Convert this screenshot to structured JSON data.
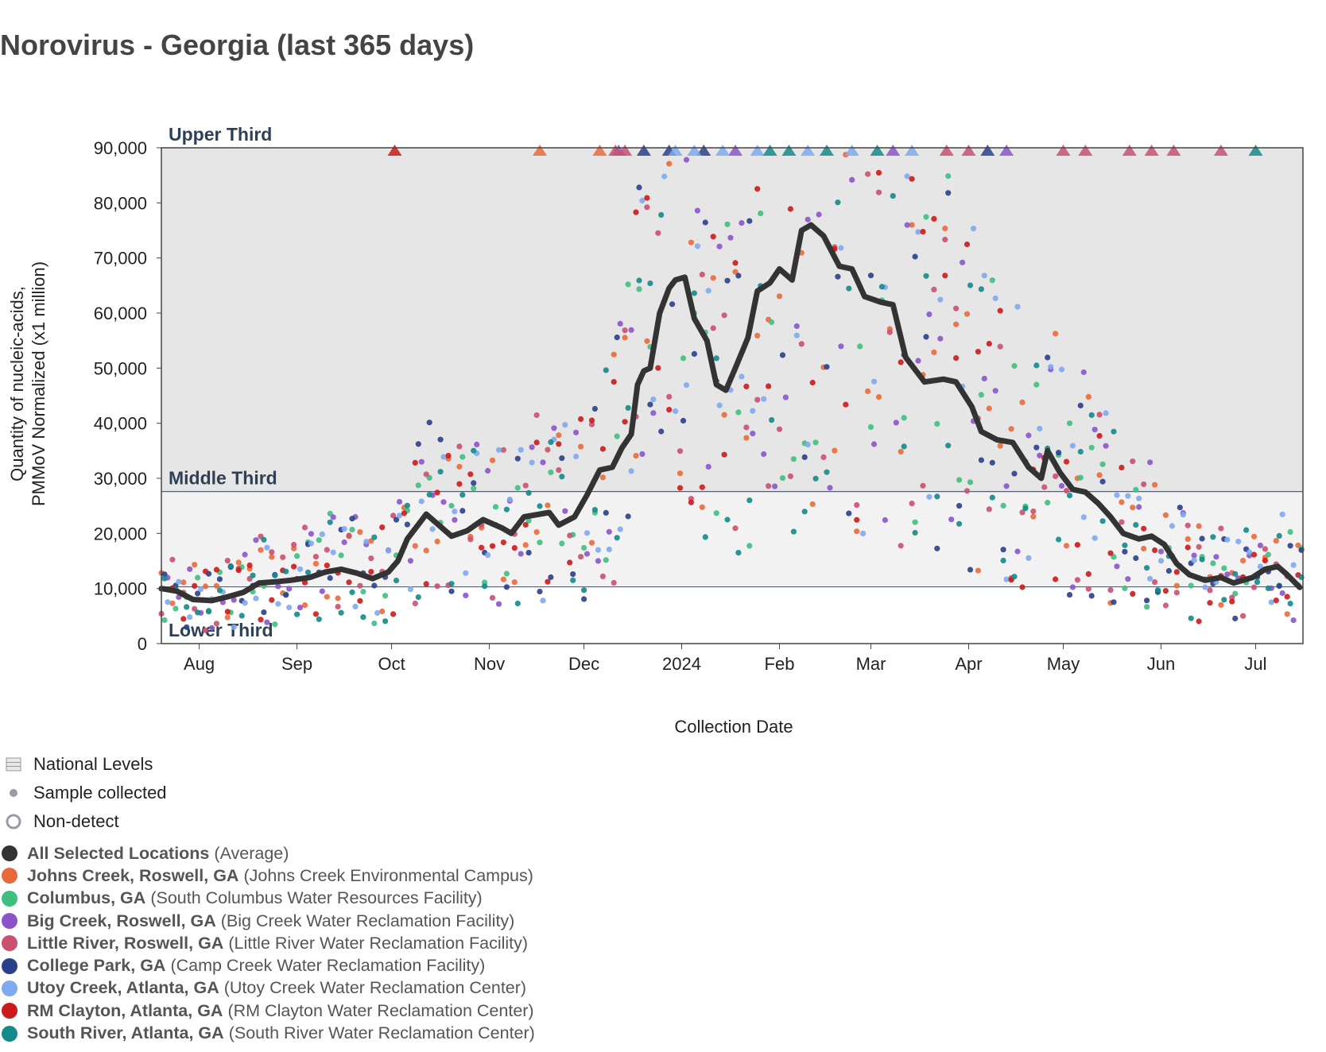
{
  "title": "Norovirus - Georgia (last 365 days)",
  "chart_data": {
    "type": "scatter",
    "title": "Norovirus - Georgia (last 365 days)",
    "xlabel": "Collection Date",
    "ylabel_lines": [
      "Quantity of nucleic-acids,",
      "PMMoV Normalized (x1 million)"
    ],
    "x_range": [
      "2023-07-20",
      "2024-07-16"
    ],
    "ylim": [
      0,
      90000
    ],
    "y_ticks": [
      0,
      10000,
      20000,
      30000,
      40000,
      50000,
      60000,
      70000,
      80000,
      90000
    ],
    "y_tick_labels": [
      "0",
      "10,000",
      "20,000",
      "30,000",
      "40,000",
      "50,000",
      "60,000",
      "70,000",
      "80,000",
      "90,000"
    ],
    "x_ticks": [
      {
        "date": "2023-08-01",
        "label": "Aug"
      },
      {
        "date": "2023-09-01",
        "label": "Sep"
      },
      {
        "date": "2023-10-01",
        "label": "Oct"
      },
      {
        "date": "2023-11-01",
        "label": "Nov"
      },
      {
        "date": "2023-12-01",
        "label": "Dec"
      },
      {
        "date": "2024-01-01",
        "label": "2024"
      },
      {
        "date": "2024-02-01",
        "label": "Feb"
      },
      {
        "date": "2024-03-01",
        "label": "Mar"
      },
      {
        "date": "2024-04-01",
        "label": "Apr"
      },
      {
        "date": "2024-05-01",
        "label": "May"
      },
      {
        "date": "2024-06-01",
        "label": "Jun"
      },
      {
        "date": "2024-07-01",
        "label": "Jul"
      }
    ],
    "bands": [
      {
        "label": "Lower Third",
        "from": 0,
        "to": 10300,
        "color": "#ffffff"
      },
      {
        "label": "Middle Third",
        "from": 10300,
        "to": 27600,
        "color": "#f2f2f2"
      },
      {
        "label": "Upper Third",
        "from": 27600,
        "to": 90000,
        "color": "#e6e6e6"
      }
    ],
    "average_series": {
      "name": "All Selected Locations",
      "color": "#333333",
      "points": [
        [
          "2023-07-20",
          10000
        ],
        [
          "2023-07-25",
          9500
        ],
        [
          "2023-07-30",
          8000
        ],
        [
          "2023-08-05",
          7800
        ],
        [
          "2023-08-10",
          8500
        ],
        [
          "2023-08-15",
          9300
        ],
        [
          "2023-08-20",
          11000
        ],
        [
          "2023-08-25",
          11200
        ],
        [
          "2023-08-30",
          11500
        ],
        [
          "2023-09-05",
          12000
        ],
        [
          "2023-09-10",
          13000
        ],
        [
          "2023-09-15",
          13500
        ],
        [
          "2023-09-20",
          12800
        ],
        [
          "2023-09-25",
          11800
        ],
        [
          "2023-09-30",
          13000
        ],
        [
          "2023-10-03",
          15000
        ],
        [
          "2023-10-06",
          19000
        ],
        [
          "2023-10-10",
          22000
        ],
        [
          "2023-10-12",
          23500
        ],
        [
          "2023-10-15",
          22000
        ],
        [
          "2023-10-20",
          19500
        ],
        [
          "2023-10-25",
          20500
        ],
        [
          "2023-10-30",
          22500
        ],
        [
          "2023-11-05",
          21000
        ],
        [
          "2023-11-08",
          20000
        ],
        [
          "2023-11-12",
          23000
        ],
        [
          "2023-11-20",
          23800
        ],
        [
          "2023-11-23",
          21500
        ],
        [
          "2023-11-28",
          23000
        ],
        [
          "2023-12-02",
          27000
        ],
        [
          "2023-12-06",
          31500
        ],
        [
          "2023-12-10",
          32000
        ],
        [
          "2023-12-13",
          35500
        ],
        [
          "2023-12-16",
          38000
        ],
        [
          "2023-12-18",
          47000
        ],
        [
          "2023-12-20",
          49500
        ],
        [
          "2023-12-22",
          50000
        ],
        [
          "2023-12-25",
          60000
        ],
        [
          "2023-12-28",
          64500
        ],
        [
          "2023-12-30",
          66000
        ],
        [
          "2024-01-02",
          66500
        ],
        [
          "2024-01-05",
          59000
        ],
        [
          "2024-01-09",
          55000
        ],
        [
          "2024-01-12",
          47000
        ],
        [
          "2024-01-15",
          46000
        ],
        [
          "2024-01-18",
          50000
        ],
        [
          "2024-01-22",
          55500
        ],
        [
          "2024-01-25",
          64000
        ],
        [
          "2024-01-29",
          65500
        ],
        [
          "2024-02-01",
          68000
        ],
        [
          "2024-02-05",
          66000
        ],
        [
          "2024-02-08",
          75000
        ],
        [
          "2024-02-11",
          76000
        ],
        [
          "2024-02-15",
          74000
        ],
        [
          "2024-02-20",
          68500
        ],
        [
          "2024-02-24",
          68000
        ],
        [
          "2024-02-28",
          63000
        ],
        [
          "2024-03-04",
          62000
        ],
        [
          "2024-03-08",
          61500
        ],
        [
          "2024-03-12",
          52000
        ],
        [
          "2024-03-18",
          47500
        ],
        [
          "2024-03-24",
          48000
        ],
        [
          "2024-03-28",
          47500
        ],
        [
          "2024-04-02",
          43000
        ],
        [
          "2024-04-05",
          38500
        ],
        [
          "2024-04-10",
          37000
        ],
        [
          "2024-04-15",
          36500
        ],
        [
          "2024-04-20",
          32000
        ],
        [
          "2024-04-24",
          30000
        ],
        [
          "2024-04-26",
          35000
        ],
        [
          "2024-04-30",
          31000
        ],
        [
          "2024-05-04",
          28000
        ],
        [
          "2024-05-08",
          27500
        ],
        [
          "2024-05-12",
          25500
        ],
        [
          "2024-05-16",
          23000
        ],
        [
          "2024-05-20",
          20000
        ],
        [
          "2024-05-25",
          19000
        ],
        [
          "2024-05-29",
          19500
        ],
        [
          "2024-06-02",
          18000
        ],
        [
          "2024-06-06",
          14500
        ],
        [
          "2024-06-10",
          12500
        ],
        [
          "2024-06-15",
          11500
        ],
        [
          "2024-06-20",
          12000
        ],
        [
          "2024-06-24",
          11000
        ],
        [
          "2024-06-27",
          11500
        ],
        [
          "2024-06-30",
          12000
        ],
        [
          "2024-07-04",
          13500
        ],
        [
          "2024-07-08",
          14000
        ],
        [
          "2024-07-11",
          12500
        ],
        [
          "2024-07-15",
          10200
        ]
      ]
    },
    "series": [
      {
        "name": "Johns Creek, Roswell, GA",
        "facility": "(Johns Creek Environmental Campus)",
        "color": "#e86a3a",
        "offscale_dates": [
          "2023-11-17",
          "2023-12-06"
        ]
      },
      {
        "name": "Columbus, GA",
        "facility": "(South Columbus Water Resources Facility)",
        "color": "#3fbf7f",
        "offscale_dates": []
      },
      {
        "name": "Big Creek, Roswell, GA",
        "facility": "(Big Creek Water Reclamation Facility)",
        "color": "#8b55c9",
        "offscale_dates": [
          "2023-12-12",
          "2024-01-18",
          "2024-03-08",
          "2024-04-13"
        ]
      },
      {
        "name": "Little River, Roswell, GA",
        "facility": "(Little River Water Reclamation Facility)",
        "color": "#c9506f",
        "offscale_dates": [
          "2023-12-11",
          "2023-12-14",
          "2024-03-25",
          "2024-04-01",
          "2024-05-01",
          "2024-05-08",
          "2024-05-22",
          "2024-05-29",
          "2024-06-05",
          "2024-06-20"
        ]
      },
      {
        "name": "College Park, GA",
        "facility": "(Camp Creek Water Reclamation Facility)",
        "color": "#2a3f8a",
        "offscale_dates": [
          "2023-12-20",
          "2023-12-28",
          "2024-01-08",
          "2024-04-07"
        ]
      },
      {
        "name": "Utoy Creek, Atlanta, GA",
        "facility": "(Utoy Creek Water Reclamation Center)",
        "color": "#7fa9f0",
        "offscale_dates": [
          "2023-12-30",
          "2024-01-05",
          "2024-01-14",
          "2024-01-25",
          "2024-02-10",
          "2024-02-24",
          "2024-03-14"
        ]
      },
      {
        "name": "RM Clayton, Atlanta, GA",
        "facility": "(RM Clayton Water Reclamation Center)",
        "color": "#cc1a1a",
        "offscale_dates": [
          "2023-10-02"
        ]
      },
      {
        "name": "South River, Atlanta, GA",
        "facility": "(South River Water Reclamation Center)",
        "color": "#148a8a",
        "offscale_dates": [
          "2024-01-29",
          "2024-02-04",
          "2024-02-16",
          "2024-03-03",
          "2024-07-01"
        ]
      }
    ],
    "legend": {
      "national_levels": "National Levels",
      "sample_collected": "Sample collected",
      "non_detect": "Non-detect",
      "average_name": "All Selected Locations",
      "average_suffix": "(Average)"
    }
  }
}
